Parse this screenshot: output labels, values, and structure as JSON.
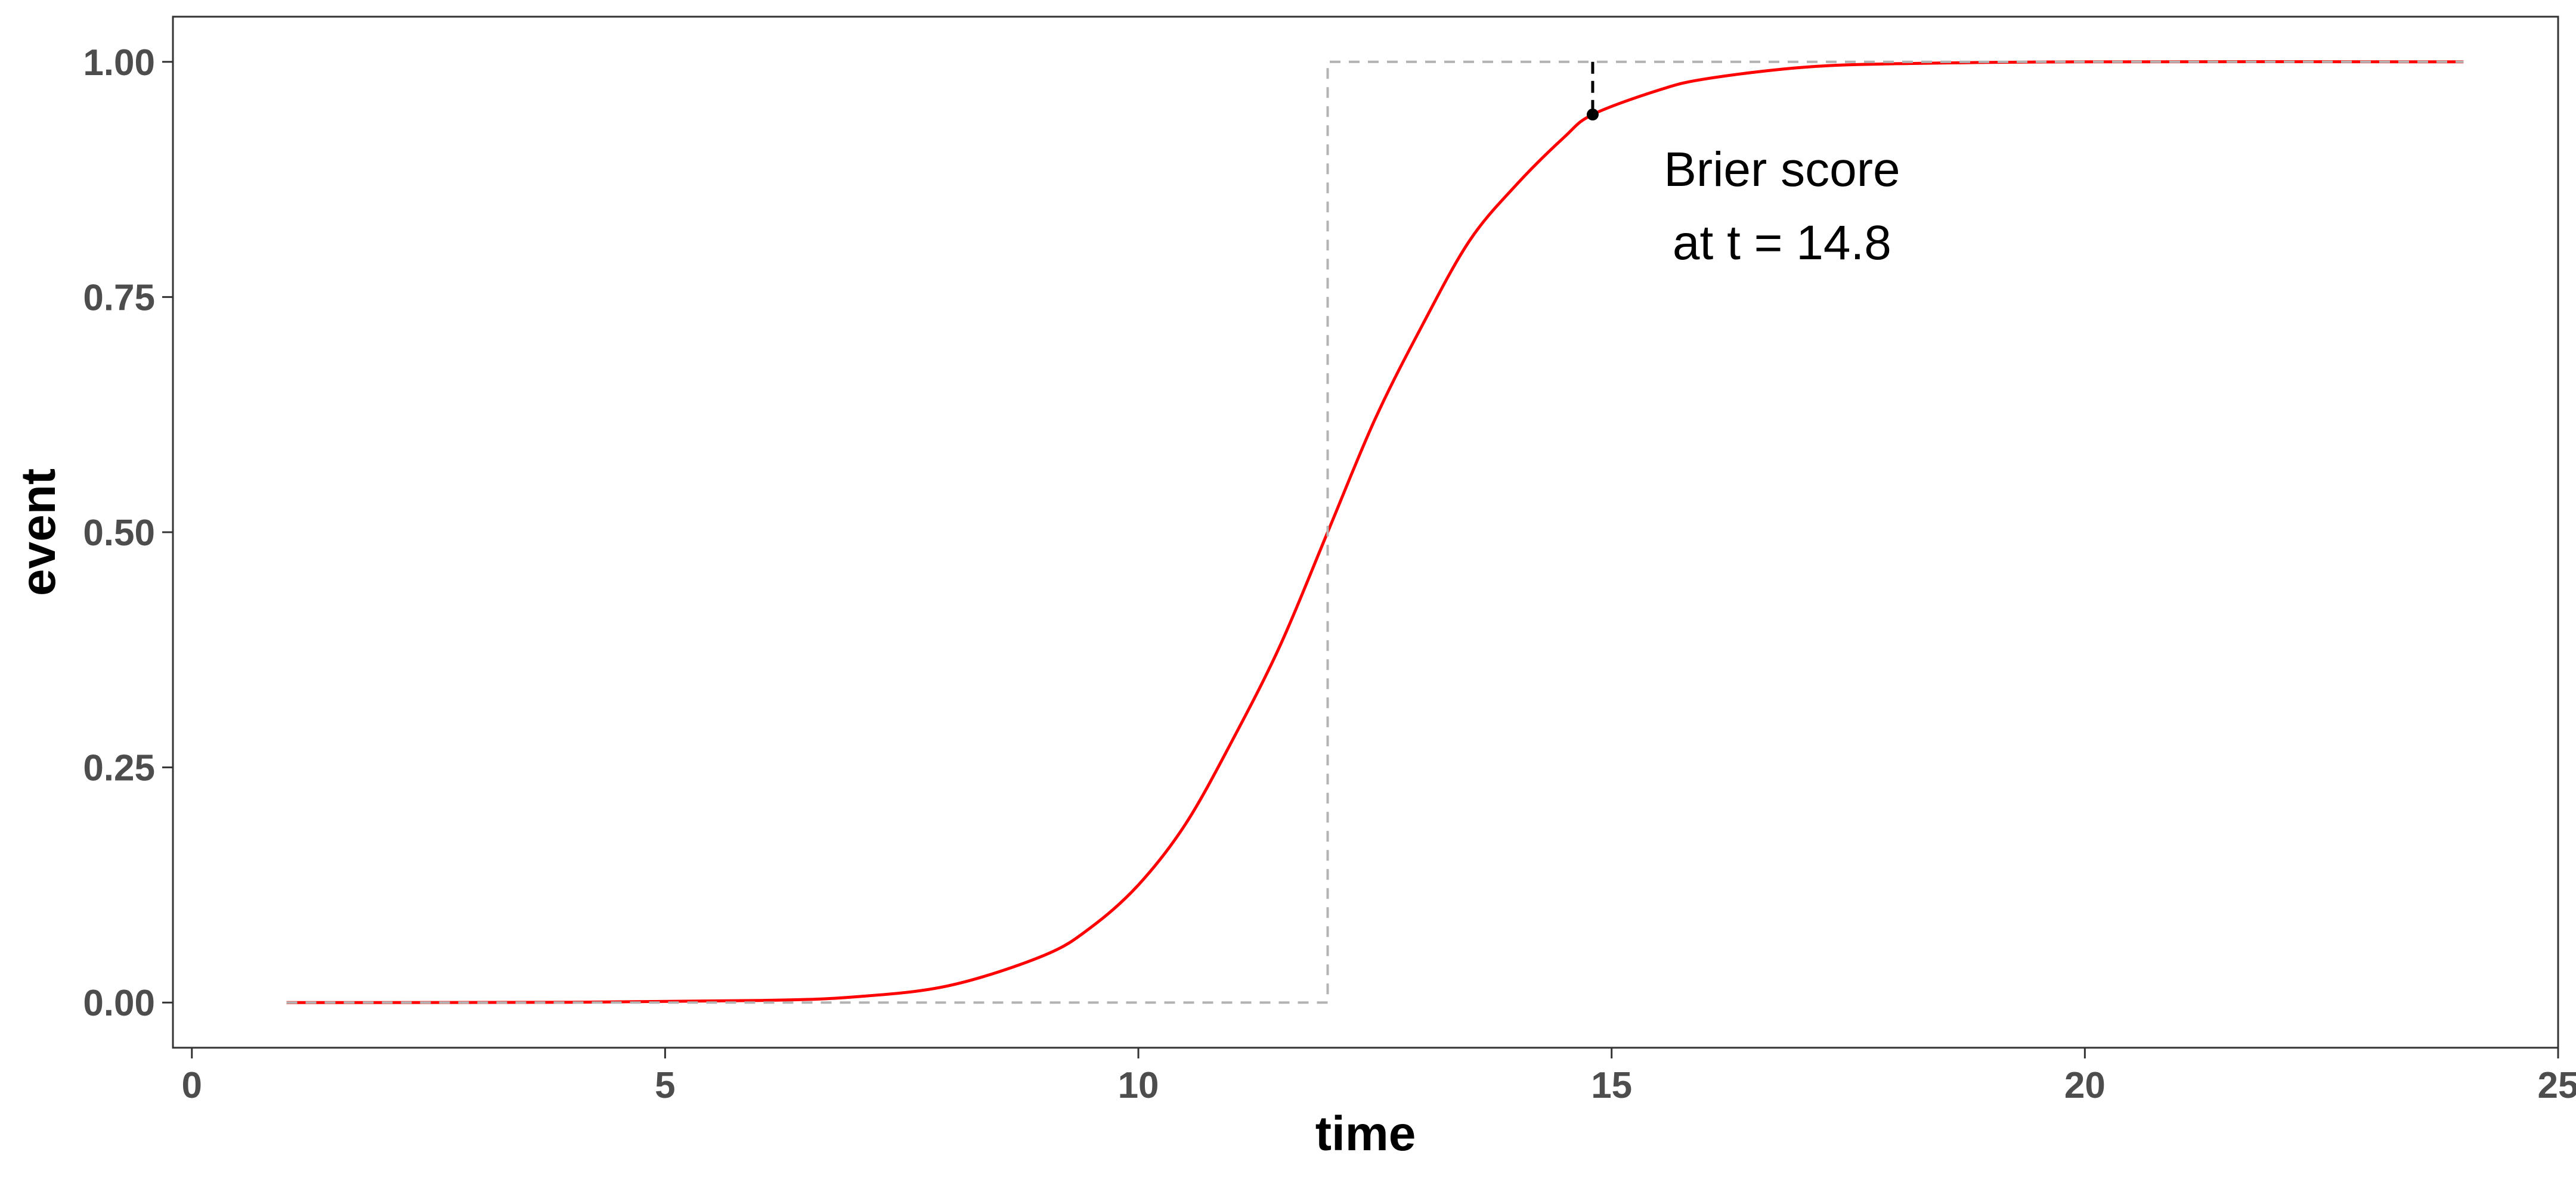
{
  "chart_data": {
    "type": "line",
    "title": "",
    "xlabel": "time",
    "ylabel": "event",
    "xlim": [
      -0.2,
      25.0
    ],
    "ylim": [
      -0.048,
      1.048
    ],
    "x_ticks": [
      0,
      5,
      10,
      15,
      20,
      25
    ],
    "x_tick_labels": [
      "0",
      "5",
      "10",
      "15",
      "20",
      "25"
    ],
    "y_ticks": [
      0.0,
      0.25,
      0.5,
      0.75,
      1.0
    ],
    "y_tick_labels": [
      "0.00",
      "0.25",
      "0.50",
      "0.75",
      "1.00"
    ],
    "grid": false,
    "legend": "none",
    "series": [
      {
        "kind": "smooth-curve",
        "color": "#ff0000",
        "x": [
          1,
          4,
          6,
          7,
          8,
          9,
          9.5,
          10,
          10.5,
          11,
          11.5,
          12,
          12.5,
          13,
          13.5,
          14,
          14.5,
          14.8,
          15.5,
          16,
          17,
          18,
          20,
          24
        ],
        "y": [
          0.0,
          0.0003,
          0.0022,
          0.006,
          0.018,
          0.05,
          0.08,
          0.125,
          0.19,
          0.28,
          0.38,
          0.5,
          0.62,
          0.72,
          0.81,
          0.87,
          0.92,
          0.944,
          0.97,
          0.982,
          0.994,
          0.998,
          1.0,
          1.0
        ]
      },
      {
        "kind": "step",
        "color": "#b3b3b3",
        "dashed": true,
        "x": [
          1,
          12,
          12,
          24
        ],
        "y": [
          0,
          0,
          1,
          1
        ]
      }
    ],
    "highlight": {
      "x": 14.8,
      "y_curve": 0.944,
      "y_observed": 1.0,
      "point_color": "#000000",
      "segment_color": "#000000",
      "segment_dashed": true
    },
    "annotation": {
      "lines": [
        "Brier score",
        "at t = 14.8"
      ],
      "x": 16.8,
      "y_top": 0.868,
      "y_bottom": 0.79
    }
  }
}
